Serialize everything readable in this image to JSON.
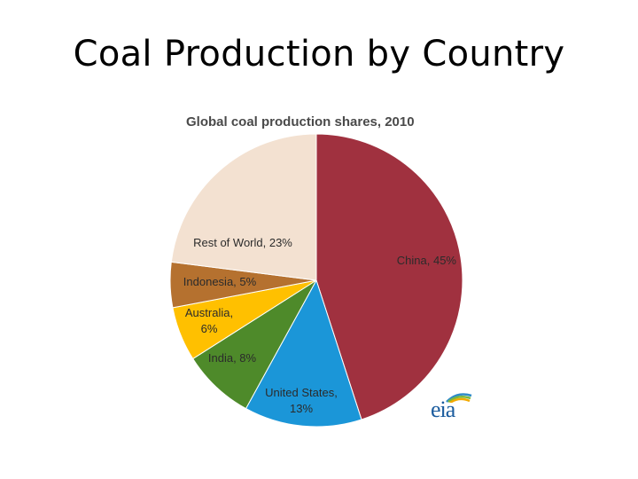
{
  "slide": {
    "title": "Coal Production by Country"
  },
  "chart_data": {
    "type": "pie",
    "title": "Global coal production shares, 2010",
    "slices": [
      {
        "label": "China, 45%",
        "value": 45,
        "color": "#a0313f"
      },
      {
        "label": "United States, 13%",
        "value": 13,
        "color": "#1b96d8"
      },
      {
        "label": "India, 8%",
        "value": 8,
        "color": "#4e8a2a"
      },
      {
        "label": "Australia, 6%",
        "value": 6,
        "color": "#ffc000"
      },
      {
        "label": "Indonesia, 5%",
        "value": 5,
        "color": "#b5712f"
      },
      {
        "label": "Rest of World, 23%",
        "value": 23,
        "color": "#f3e1d1"
      }
    ],
    "start_angle": "12 o'clock",
    "direction": "clockwise",
    "legend": "none"
  },
  "logo": {
    "text": "eia",
    "colors": [
      "#2e8bc8",
      "#7cb83c",
      "#f2a900"
    ]
  }
}
